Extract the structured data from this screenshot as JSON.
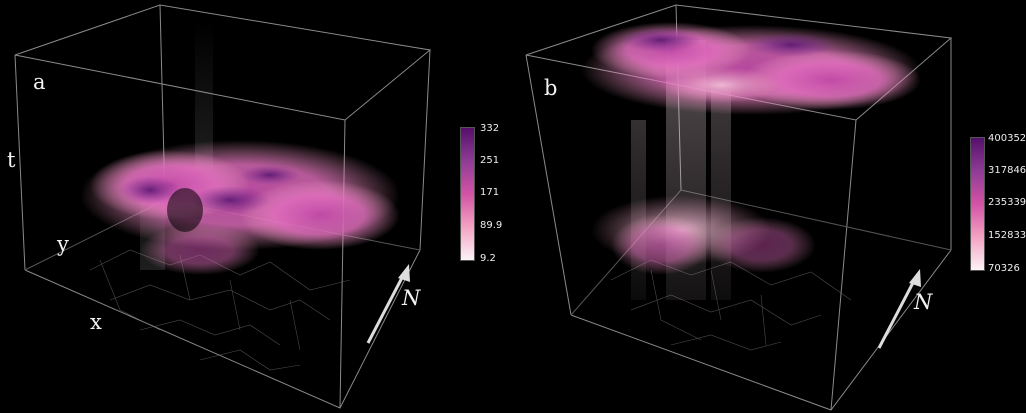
{
  "panels": [
    {
      "id": "a",
      "label": "a",
      "axes": {
        "t": "t",
        "y": "y",
        "x": "x"
      },
      "north": "N",
      "colorbar": {
        "ticks": [
          "332",
          "251",
          "171",
          "89.9",
          "9.2"
        ],
        "colors": [
          "#54106b",
          "#8f3c95",
          "#d353a6",
          "#f3a2c2",
          "#fdf3f7"
        ]
      }
    },
    {
      "id": "b",
      "label": "b",
      "north": "N",
      "colorbar": {
        "ticks": [
          "400352",
          "317846",
          "235339",
          "152833",
          "70326"
        ],
        "colors": [
          "#54106b",
          "#8f3c95",
          "#d353a6",
          "#f3a2c2",
          "#fdf3f7"
        ]
      }
    }
  ]
}
